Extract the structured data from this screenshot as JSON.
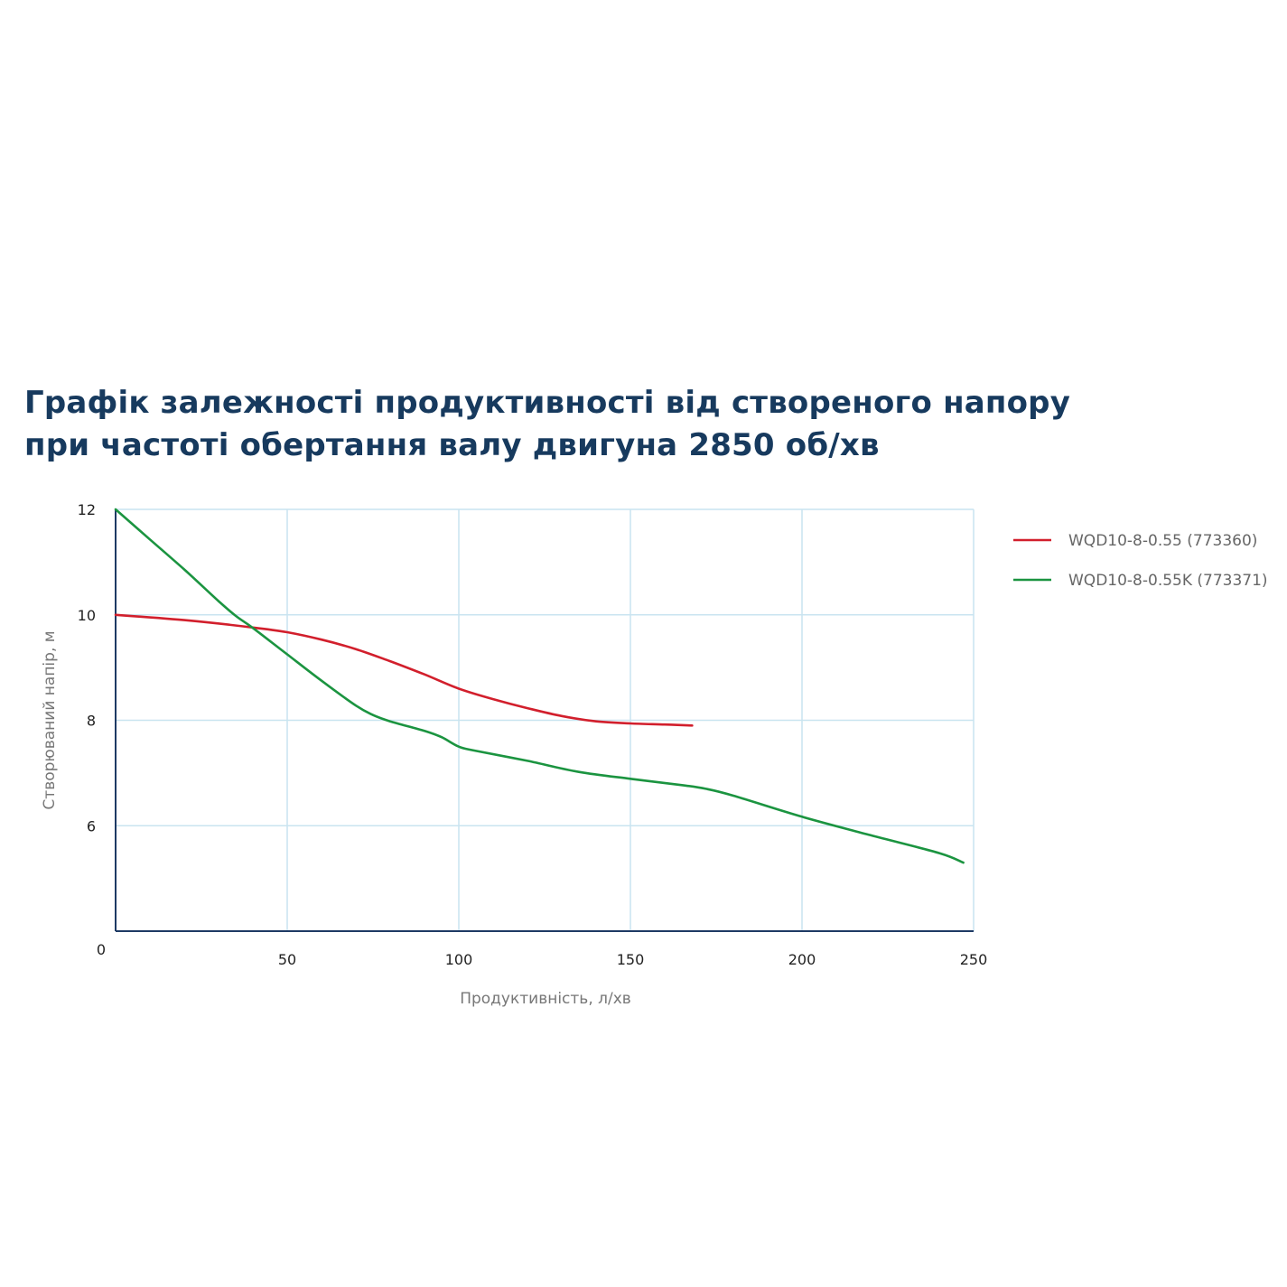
{
  "title": {
    "line1": "Графік залежності продуктивності від створеного напору",
    "line2": "при частоті обертання валу двигуна 2850 об/хв"
  },
  "chart_data": {
    "type": "line",
    "xlabel": "Продуктивність, л/хв",
    "ylabel": "Створюваний напір, м",
    "xlim": [
      0,
      250
    ],
    "ylim": [
      4,
      12
    ],
    "x_ticks": [
      "0",
      "50",
      "100",
      "150",
      "200",
      "250"
    ],
    "y_ticks": [
      "6",
      "8",
      "10",
      "12"
    ],
    "grid": true,
    "legend_position": "right",
    "series": [
      {
        "name": "WQD10-8-0.55 (773360)",
        "color": "#d21f2c",
        "x": [
          0,
          20,
          40,
          50,
          60,
          70,
          80,
          90,
          100,
          110,
          120,
          130,
          140,
          150,
          160,
          168
        ],
        "y": [
          10.0,
          9.9,
          9.76,
          9.67,
          9.53,
          9.35,
          9.12,
          8.87,
          8.6,
          8.4,
          8.23,
          8.08,
          7.98,
          7.94,
          7.92,
          7.9
        ]
      },
      {
        "name": "WQD10-8-0.55K (773371)",
        "color": "#1b9440",
        "x": [
          0,
          10,
          20,
          30,
          35,
          40,
          50,
          60,
          70,
          75,
          80,
          90,
          95,
          100,
          105,
          120,
          135,
          150,
          165,
          172,
          180,
          200,
          220,
          240,
          247
        ],
        "y": [
          12.0,
          11.43,
          10.86,
          10.26,
          9.98,
          9.75,
          9.25,
          8.75,
          8.28,
          8.1,
          7.98,
          7.8,
          7.68,
          7.5,
          7.42,
          7.23,
          7.02,
          6.89,
          6.77,
          6.7,
          6.57,
          6.17,
          5.82,
          5.48,
          5.3
        ]
      }
    ]
  }
}
